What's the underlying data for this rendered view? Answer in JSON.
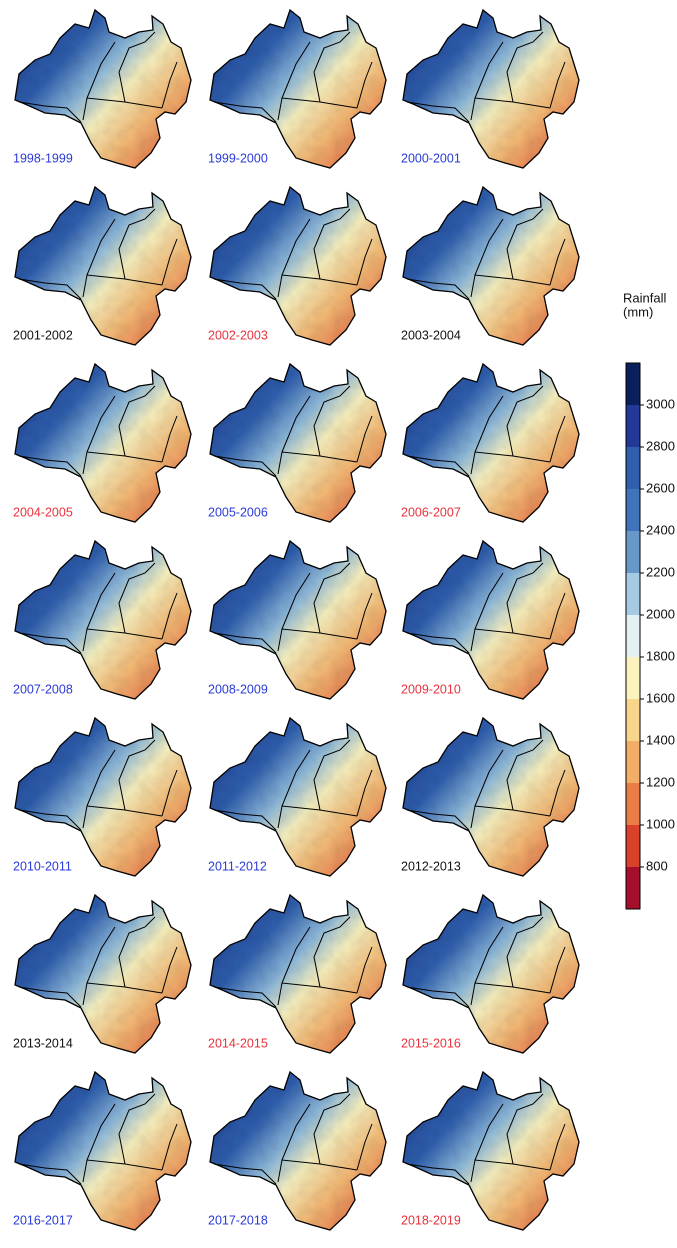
{
  "panels": [
    {
      "label": "1998-1999",
      "label_color": "#2a3bd8"
    },
    {
      "label": "1999-2000",
      "label_color": "#2a3bd8"
    },
    {
      "label": "2000-2001",
      "label_color": "#2a3bd8"
    },
    {
      "label": "2001-2002",
      "label_color": "#111111"
    },
    {
      "label": "2002-2003",
      "label_color": "#e8323c"
    },
    {
      "label": "2003-2004",
      "label_color": "#111111"
    },
    {
      "label": "2004-2005",
      "label_color": "#e8323c"
    },
    {
      "label": "2005-2006",
      "label_color": "#2a3bd8"
    },
    {
      "label": "2006-2007",
      "label_color": "#e8323c"
    },
    {
      "label": "2007-2008",
      "label_color": "#2a3bd8"
    },
    {
      "label": "2008-2009",
      "label_color": "#2a3bd8"
    },
    {
      "label": "2009-2010",
      "label_color": "#e8323c"
    },
    {
      "label": "2010-2011",
      "label_color": "#2a3bd8"
    },
    {
      "label": "2011-2012",
      "label_color": "#2a3bd8"
    },
    {
      "label": "2012-2013",
      "label_color": "#111111"
    },
    {
      "label": "2013-2014",
      "label_color": "#111111"
    },
    {
      "label": "2014-2015",
      "label_color": "#e8323c"
    },
    {
      "label": "2015-2016",
      "label_color": "#e8323c"
    },
    {
      "label": "2016-2017",
      "label_color": "#2a3bd8"
    },
    {
      "label": "2017-2018",
      "label_color": "#2a3bd8"
    },
    {
      "label": "2018-2019",
      "label_color": "#e8323c"
    }
  ],
  "colorbar": {
    "title": [
      "Rainfall",
      "(mm)"
    ],
    "lim": [
      600,
      3200
    ],
    "ticks": [
      3000,
      2800,
      2600,
      2400,
      2200,
      2000,
      1800,
      1600,
      1400,
      1200,
      1000,
      800
    ],
    "colors": [
      "#0b1f5c",
      "#23399a",
      "#2f5fae",
      "#3f74ba",
      "#6798c8",
      "#a5cbe2",
      "#e4f1f4",
      "#fbf3bd",
      "#f7d58b",
      "#f2ae66",
      "#eb7b47",
      "#d9412a",
      "#a50f2c"
    ]
  }
}
